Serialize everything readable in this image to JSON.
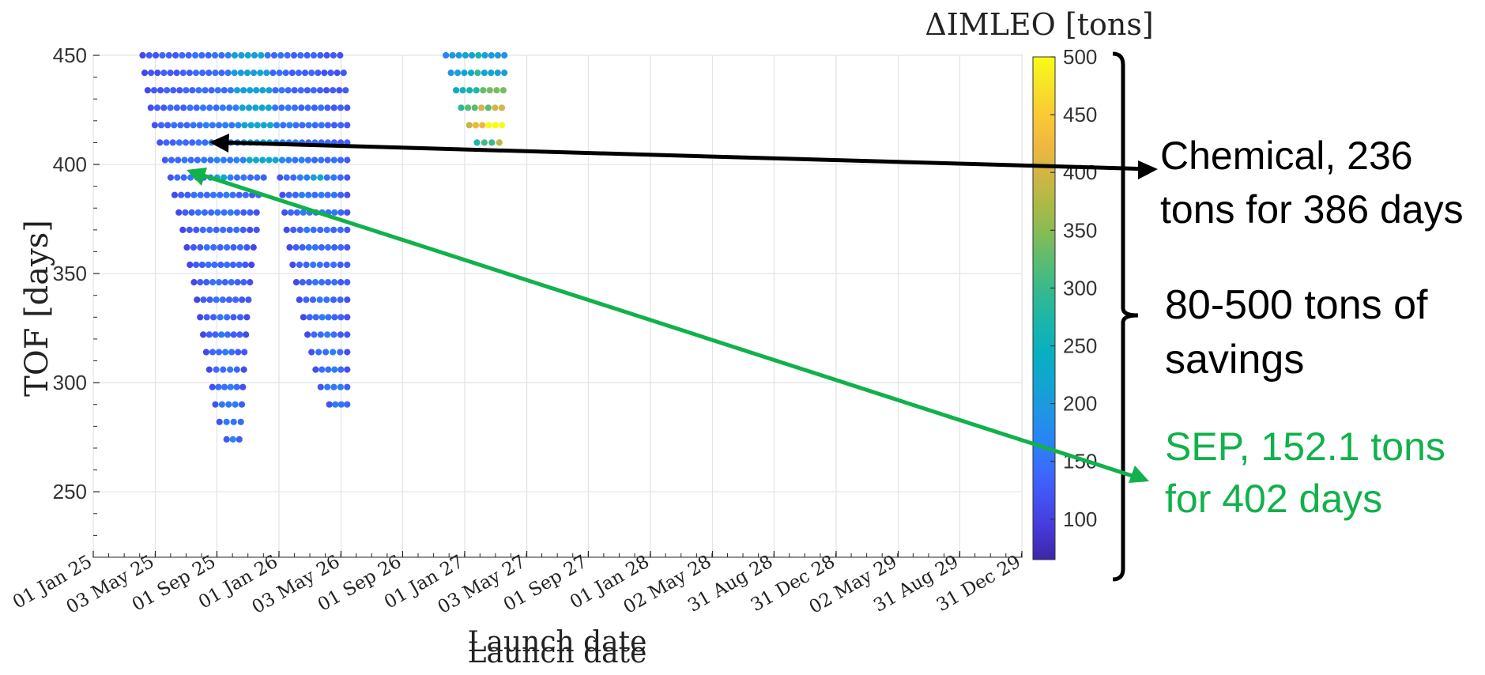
{
  "chart_data": {
    "type": "scatter",
    "title": "",
    "xlabel": "Launch date",
    "xlabel_ghost": "Launch date",
    "ylabel": "TOF [days]",
    "ylim": [
      220,
      450
    ],
    "grid": true,
    "x_ticks": [
      "01 Jan 25",
      "03 May 25",
      "01 Sep 25",
      "01 Jan 26",
      "03 May 26",
      "01 Sep 26",
      "01 Jan 27",
      "03 May 27",
      "01 Sep 27",
      "01 Jan 28",
      "02 May 28",
      "31 Aug 28",
      "31 Dec 28",
      "02 May 29",
      "31 Aug 29",
      "31 Dec 29"
    ],
    "y_ticks": [
      250,
      300,
      350,
      400,
      450
    ],
    "colorbar": {
      "title": "ΔIMLEO [tons]",
      "range": [
        65,
        500
      ],
      "ticks": [
        100,
        150,
        200,
        250,
        300,
        350,
        400,
        450,
        500
      ],
      "colormap": [
        "#3e26a8",
        "#4538d6",
        "#4450f0",
        "#3b6afd",
        "#2884f6",
        "#1f96e2",
        "#13a5d1",
        "#07b0c0",
        "#1ab5ac",
        "#33b891",
        "#56bc75",
        "#83bc56",
        "#acb947",
        "#d0b646",
        "#eeb840",
        "#fac934",
        "#f6e228",
        "#f9fb15"
      ]
    },
    "series": [
      {
        "band_rows": [
          {
            "tof": 450,
            "start": "2025-04-08",
            "end": "2026-05-01",
            "value": 140
          },
          {
            "tof": 442,
            "start": "2025-04-12",
            "end": "2026-05-08",
            "value": 135
          },
          {
            "tof": 434,
            "start": "2025-04-18",
            "end": "2026-05-12",
            "value": 140
          },
          {
            "tof": 426,
            "start": "2025-04-24",
            "end": "2026-05-15",
            "value": 145
          },
          {
            "tof": 418,
            "start": "2025-05-02",
            "end": "2026-05-15",
            "value": 150
          },
          {
            "tof": 410,
            "start": "2025-05-12",
            "end": "2026-05-15",
            "value": 150
          },
          {
            "tof": 402,
            "start": "2025-05-22",
            "end": "2026-05-15",
            "value": 155
          },
          {
            "tof": 394,
            "start": "2025-06-02",
            "end": "2025-12-02",
            "value": 150
          },
          {
            "tof": 394,
            "start": "2026-01-03",
            "end": "2026-05-15",
            "value": 150
          },
          {
            "tof": 386,
            "start": "2025-06-10",
            "end": "2025-11-22",
            "value": 140
          },
          {
            "tof": 386,
            "start": "2026-01-08",
            "end": "2026-05-15",
            "value": 145
          },
          {
            "tof": 378,
            "start": "2025-06-18",
            "end": "2025-11-18",
            "value": 140
          },
          {
            "tof": 378,
            "start": "2026-01-12",
            "end": "2026-05-15",
            "value": 145
          },
          {
            "tof": 370,
            "start": "2025-06-26",
            "end": "2025-11-18",
            "value": 135
          },
          {
            "tof": 370,
            "start": "2026-01-16",
            "end": "2026-05-15",
            "value": 140
          },
          {
            "tof": 362,
            "start": "2025-07-04",
            "end": "2025-11-12",
            "value": 135
          },
          {
            "tof": 362,
            "start": "2026-01-22",
            "end": "2026-05-15",
            "value": 140
          },
          {
            "tof": 354,
            "start": "2025-07-10",
            "end": "2025-11-08",
            "value": 135
          },
          {
            "tof": 354,
            "start": "2026-01-28",
            "end": "2026-05-15",
            "value": 140
          },
          {
            "tof": 346,
            "start": "2025-07-18",
            "end": "2025-11-05",
            "value": 135
          },
          {
            "tof": 346,
            "start": "2026-02-04",
            "end": "2026-05-15",
            "value": 140
          },
          {
            "tof": 338,
            "start": "2025-07-24",
            "end": "2025-11-02",
            "value": 135
          },
          {
            "tof": 338,
            "start": "2026-02-10",
            "end": "2026-05-15",
            "value": 140
          },
          {
            "tof": 330,
            "start": "2025-07-30",
            "end": "2025-10-30",
            "value": 135
          },
          {
            "tof": 330,
            "start": "2026-02-18",
            "end": "2026-05-15",
            "value": 140
          },
          {
            "tof": 322,
            "start": "2025-08-05",
            "end": "2025-10-28",
            "value": 135
          },
          {
            "tof": 322,
            "start": "2026-02-26",
            "end": "2026-05-15",
            "value": 140
          },
          {
            "tof": 314,
            "start": "2025-08-11",
            "end": "2025-10-25",
            "value": 140
          },
          {
            "tof": 314,
            "start": "2026-03-06",
            "end": "2026-05-15",
            "value": 145
          },
          {
            "tof": 306,
            "start": "2025-08-17",
            "end": "2025-10-24",
            "value": 140
          },
          {
            "tof": 306,
            "start": "2026-03-14",
            "end": "2026-05-15",
            "value": 145
          },
          {
            "tof": 298,
            "start": "2025-08-23",
            "end": "2025-10-22",
            "value": 145
          },
          {
            "tof": 298,
            "start": "2026-03-24",
            "end": "2026-05-15",
            "value": 150
          },
          {
            "tof": 290,
            "start": "2025-08-29",
            "end": "2025-10-20",
            "value": 150
          },
          {
            "tof": 290,
            "start": "2026-04-10",
            "end": "2026-05-15",
            "value": 150
          },
          {
            "tof": 282,
            "start": "2025-09-06",
            "end": "2025-10-18",
            "value": 150
          },
          {
            "tof": 274,
            "start": "2025-09-20",
            "end": "2025-10-15",
            "value": 155
          },
          {
            "tof": 450,
            "start": "2026-11-25",
            "end": "2027-03-20",
            "value": 200
          },
          {
            "tof": 442,
            "start": "2026-12-05",
            "end": "2027-03-20",
            "value": 220
          },
          {
            "tof": 434,
            "start": "2026-12-15",
            "end": "2027-03-18",
            "value": 260
          },
          {
            "tof": 426,
            "start": "2026-12-25",
            "end": "2027-03-15",
            "value": 320
          },
          {
            "tof": 418,
            "start": "2027-01-10",
            "end": "2027-03-15",
            "value": 420
          },
          {
            "tof": 410,
            "start": "2027-01-25",
            "end": "2027-03-10",
            "value": 300
          }
        ]
      }
    ]
  },
  "annotations": {
    "chemical": {
      "line1": "Chemical, 236",
      "line2": "tons for 386 days",
      "color": "#000000"
    },
    "savings": {
      "line1": "80-500 tons of",
      "line2": "savings",
      "color": "#000000"
    },
    "sep": {
      "line1": "SEP, 152.1 tons",
      "line2": "for 402 days",
      "color": "#11b14b"
    }
  }
}
